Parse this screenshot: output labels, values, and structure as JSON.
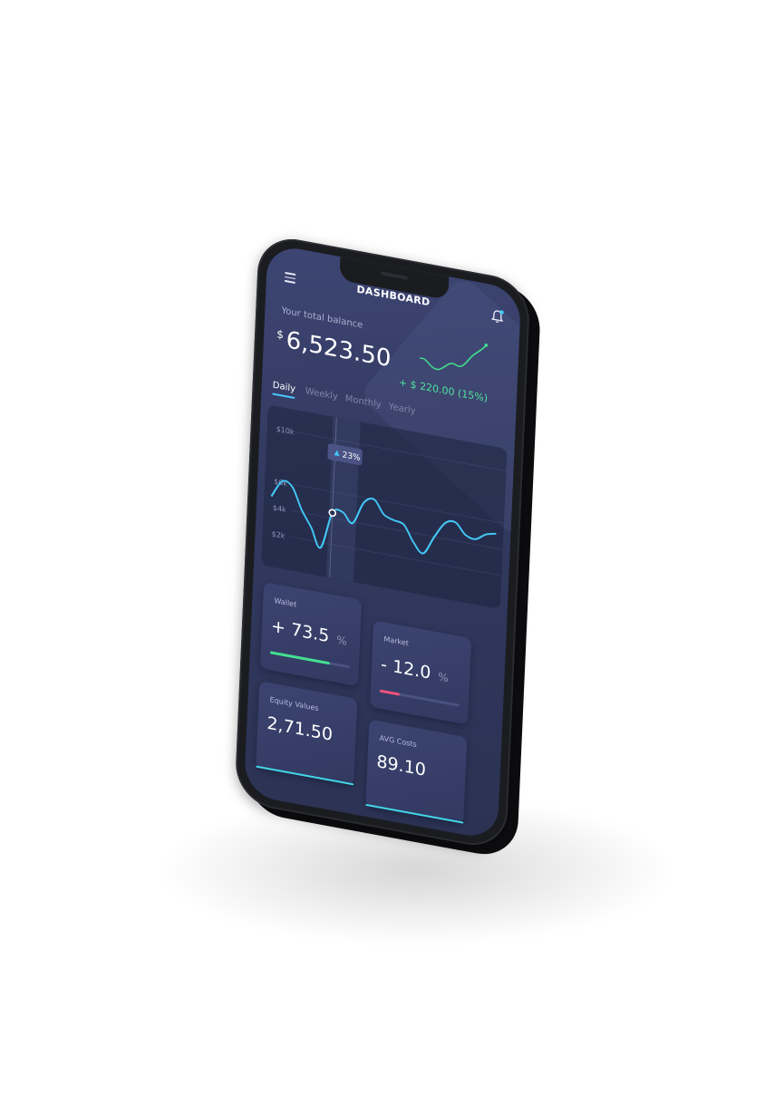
{
  "header": {
    "title": "DASHBOARD",
    "menu_icon": "hamburger-menu-icon",
    "bell_icon": "bell-icon"
  },
  "balance": {
    "label": "Your total balance",
    "currency": "$",
    "amount": "6,523.50",
    "change": "+ $ 220.00 (15%)"
  },
  "tabs": [
    {
      "label": "Daily",
      "active": true
    },
    {
      "label": "Weekly",
      "active": false
    },
    {
      "label": "Monthly",
      "active": false
    },
    {
      "label": "Yearly",
      "active": false
    }
  ],
  "chart": {
    "tooltip": "23%",
    "y_ticks": [
      "$10k",
      "$6k",
      "$4k",
      "$2k"
    ]
  },
  "chart_data": {
    "type": "line",
    "title": "",
    "xlabel": "",
    "ylabel": "",
    "y_tick_labels": [
      "$10k",
      "$6k",
      "$4k",
      "$2k"
    ],
    "series": [
      {
        "values": [
          4.8,
          6.1,
          5.8,
          4.2,
          3.0,
          1.6,
          4.4,
          4.6,
          3.9,
          5.6,
          6.0,
          5.0,
          4.7,
          4.5,
          3.3,
          2.6,
          4.0,
          5.2,
          5.4,
          4.6,
          4.4,
          4.9,
          5.1
        ]
      }
    ],
    "highlight": {
      "label": "23%",
      "index": 6
    },
    "colors": {
      "line": "#42c8f5"
    }
  },
  "cards": [
    {
      "label": "Wallet",
      "value": "+ 73.5",
      "unit": "%",
      "progress": 0.75,
      "color": "#43e08f"
    },
    {
      "label": "Market",
      "value": "- 12.0",
      "unit": "%",
      "progress": 0.25,
      "color": "#f0517a"
    },
    {
      "label": "Equity Values",
      "value": "2,71.50",
      "color": "#42d8e8"
    },
    {
      "label": "AVG Costs",
      "value": "89.10",
      "color": "#42d8e8"
    }
  ],
  "colors": {
    "accent": "#42c8f5",
    "positive": "#4fe3a0",
    "negative": "#f0517a",
    "bg": "#323a60"
  }
}
